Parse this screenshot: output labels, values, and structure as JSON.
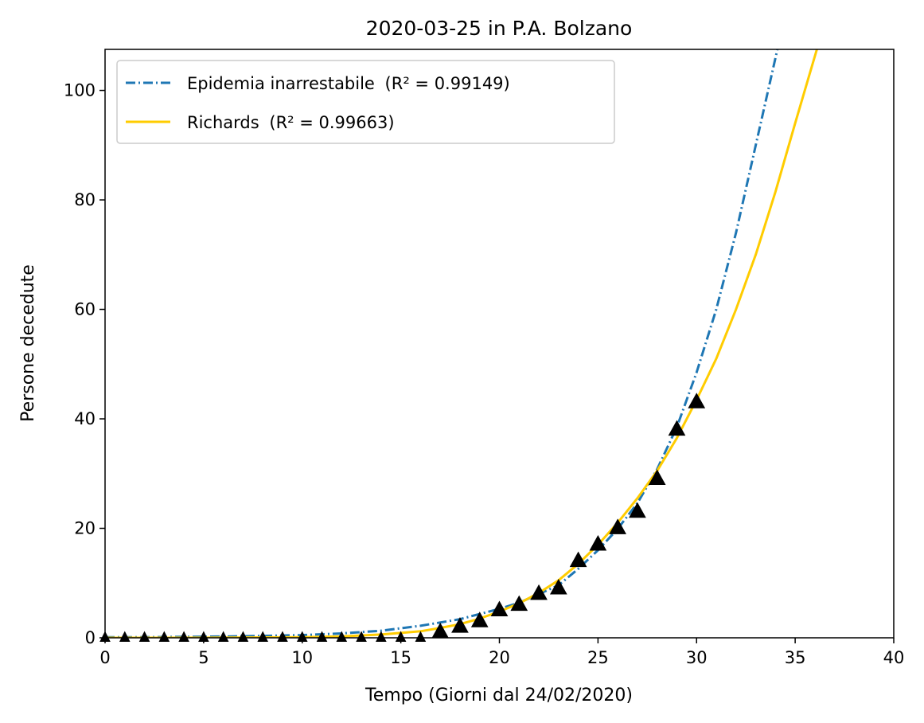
{
  "chart_data": {
    "type": "line",
    "title": "2020-03-25 in P.A. Bolzano",
    "xlabel": "Tempo (Giorni dal 24/02/2020)",
    "ylabel": "Persone decedute",
    "xlim": [
      0,
      40
    ],
    "ylim": [
      0,
      107.5
    ],
    "x_ticks": [
      0,
      5,
      10,
      15,
      20,
      25,
      30,
      35,
      40
    ],
    "y_ticks": [
      0,
      20,
      40,
      60,
      80,
      100
    ],
    "grid": false,
    "legend_position": "top-left",
    "series": [
      {
        "name": "Epidemia inarrestabile",
        "name_suffix": "(R² = 0.99149)",
        "style": "dashdot",
        "color": "#1f77b4",
        "x": [
          0,
          2,
          4,
          6,
          8,
          10,
          12,
          14,
          16,
          18,
          20,
          21,
          22,
          23,
          24,
          25,
          26,
          27,
          28,
          29,
          30,
          31,
          32,
          33,
          34.1
        ],
        "y": [
          0.1,
          0.12,
          0.17,
          0.24,
          0.35,
          0.5,
          0.8,
          1.3,
          2.2,
          3.4,
          5.3,
          6.4,
          8.0,
          9.6,
          12.6,
          16.0,
          19.9,
          24.6,
          30.8,
          38.5,
          48.5,
          60.0,
          74.0,
          90.0,
          107.5
        ]
      },
      {
        "name": "Richards",
        "name_suffix": "(R² = 0.99663)",
        "style": "solid",
        "color": "#ffcc00",
        "x": [
          0,
          5,
          10,
          12,
          14,
          16,
          17,
          18,
          19,
          20,
          21,
          22,
          23,
          24,
          25,
          26,
          27,
          28,
          29,
          30,
          31,
          32,
          33,
          34,
          35,
          36.1
        ],
        "y": [
          0,
          0.02,
          0.1,
          0.25,
          0.6,
          1.2,
          1.8,
          2.5,
          3.5,
          4.8,
          6.3,
          8.2,
          10.5,
          13.5,
          17.0,
          21.0,
          25.5,
          30.5,
          36.5,
          43.5,
          51.0,
          60.0,
          70.0,
          81.5,
          94.0,
          107.5
        ]
      }
    ],
    "observations": {
      "marker": "triangle",
      "color": "#000000",
      "x": [
        0,
        1,
        2,
        3,
        4,
        5,
        6,
        7,
        8,
        9,
        10,
        11,
        12,
        13,
        14,
        15,
        16,
        17,
        18,
        19,
        20,
        21,
        22,
        23,
        24,
        25,
        26,
        27,
        28,
        29,
        30
      ],
      "y": [
        0,
        0,
        0,
        0,
        0,
        0,
        0,
        0,
        0,
        0,
        0,
        0,
        0,
        0,
        0,
        0,
        0,
        1,
        2,
        3,
        5,
        6,
        8,
        9,
        14,
        17,
        20,
        23,
        29,
        38,
        43
      ]
    }
  }
}
